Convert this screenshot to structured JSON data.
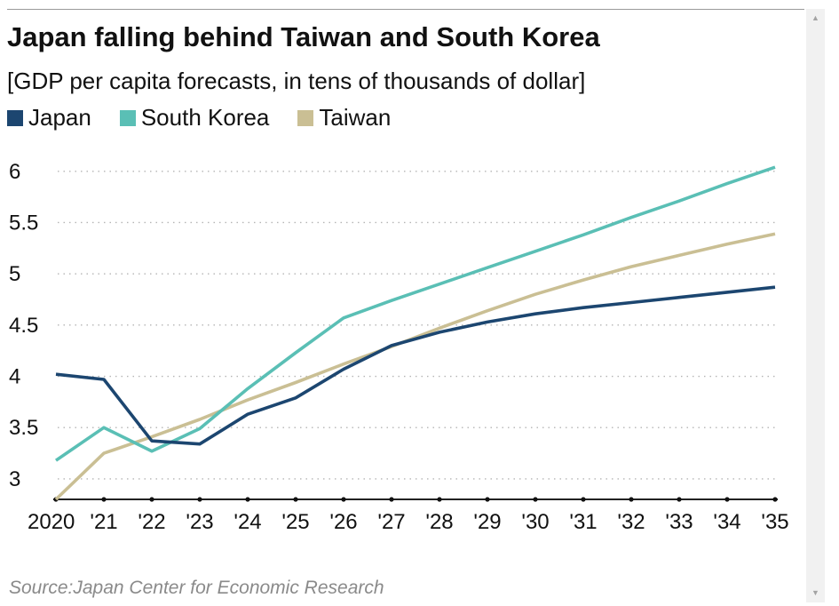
{
  "title": "Japan falling behind Taiwan and South Korea",
  "subtitle": "[GDP per capita forecasts, in tens of thousands of dollar]",
  "source": "Source:Japan Center for Economic Research",
  "icons": {
    "scroll_up": "▲",
    "scroll_down": "▼"
  },
  "chart_data": {
    "type": "line",
    "title": "Japan falling behind Taiwan and South Korea",
    "subtitle": "[GDP per capita forecasts, in tens of thousands of dollar]",
    "xlabel": "",
    "ylabel": "",
    "x": [
      "2020",
      "'21",
      "'22",
      "'23",
      "'24",
      "'25",
      "'26",
      "'27",
      "'28",
      "'29",
      "'30",
      "'31",
      "'32",
      "'33",
      "'34",
      "'35"
    ],
    "ylim": [
      2.8,
      6.05
    ],
    "yticks": [
      3,
      3.5,
      4,
      4.5,
      5,
      5.5,
      6
    ],
    "ytick_labels": [
      "3",
      "3.5",
      "4",
      "4.5",
      "5",
      "5.5",
      "6"
    ],
    "grid": "horizontal dotted",
    "legend_position": "top-left",
    "series": [
      {
        "name": "Japan",
        "color": "#1c4670",
        "values": [
          4.02,
          3.97,
          3.37,
          3.34,
          3.63,
          3.79,
          4.07,
          4.3,
          4.43,
          4.53,
          4.61,
          4.67,
          4.72,
          4.77,
          4.82,
          4.87
        ]
      },
      {
        "name": "South Korea",
        "color": "#5abfb5",
        "values": [
          3.18,
          3.5,
          3.27,
          3.49,
          3.88,
          4.23,
          4.57,
          4.74,
          4.9,
          5.06,
          5.22,
          5.38,
          5.55,
          5.71,
          5.88,
          6.04
        ]
      },
      {
        "name": "Taiwan",
        "color": "#cabf94",
        "values": [
          2.8,
          3.25,
          3.41,
          3.58,
          3.77,
          3.94,
          4.12,
          4.29,
          4.47,
          4.64,
          4.8,
          4.94,
          5.07,
          5.18,
          5.29,
          5.39
        ]
      }
    ]
  }
}
